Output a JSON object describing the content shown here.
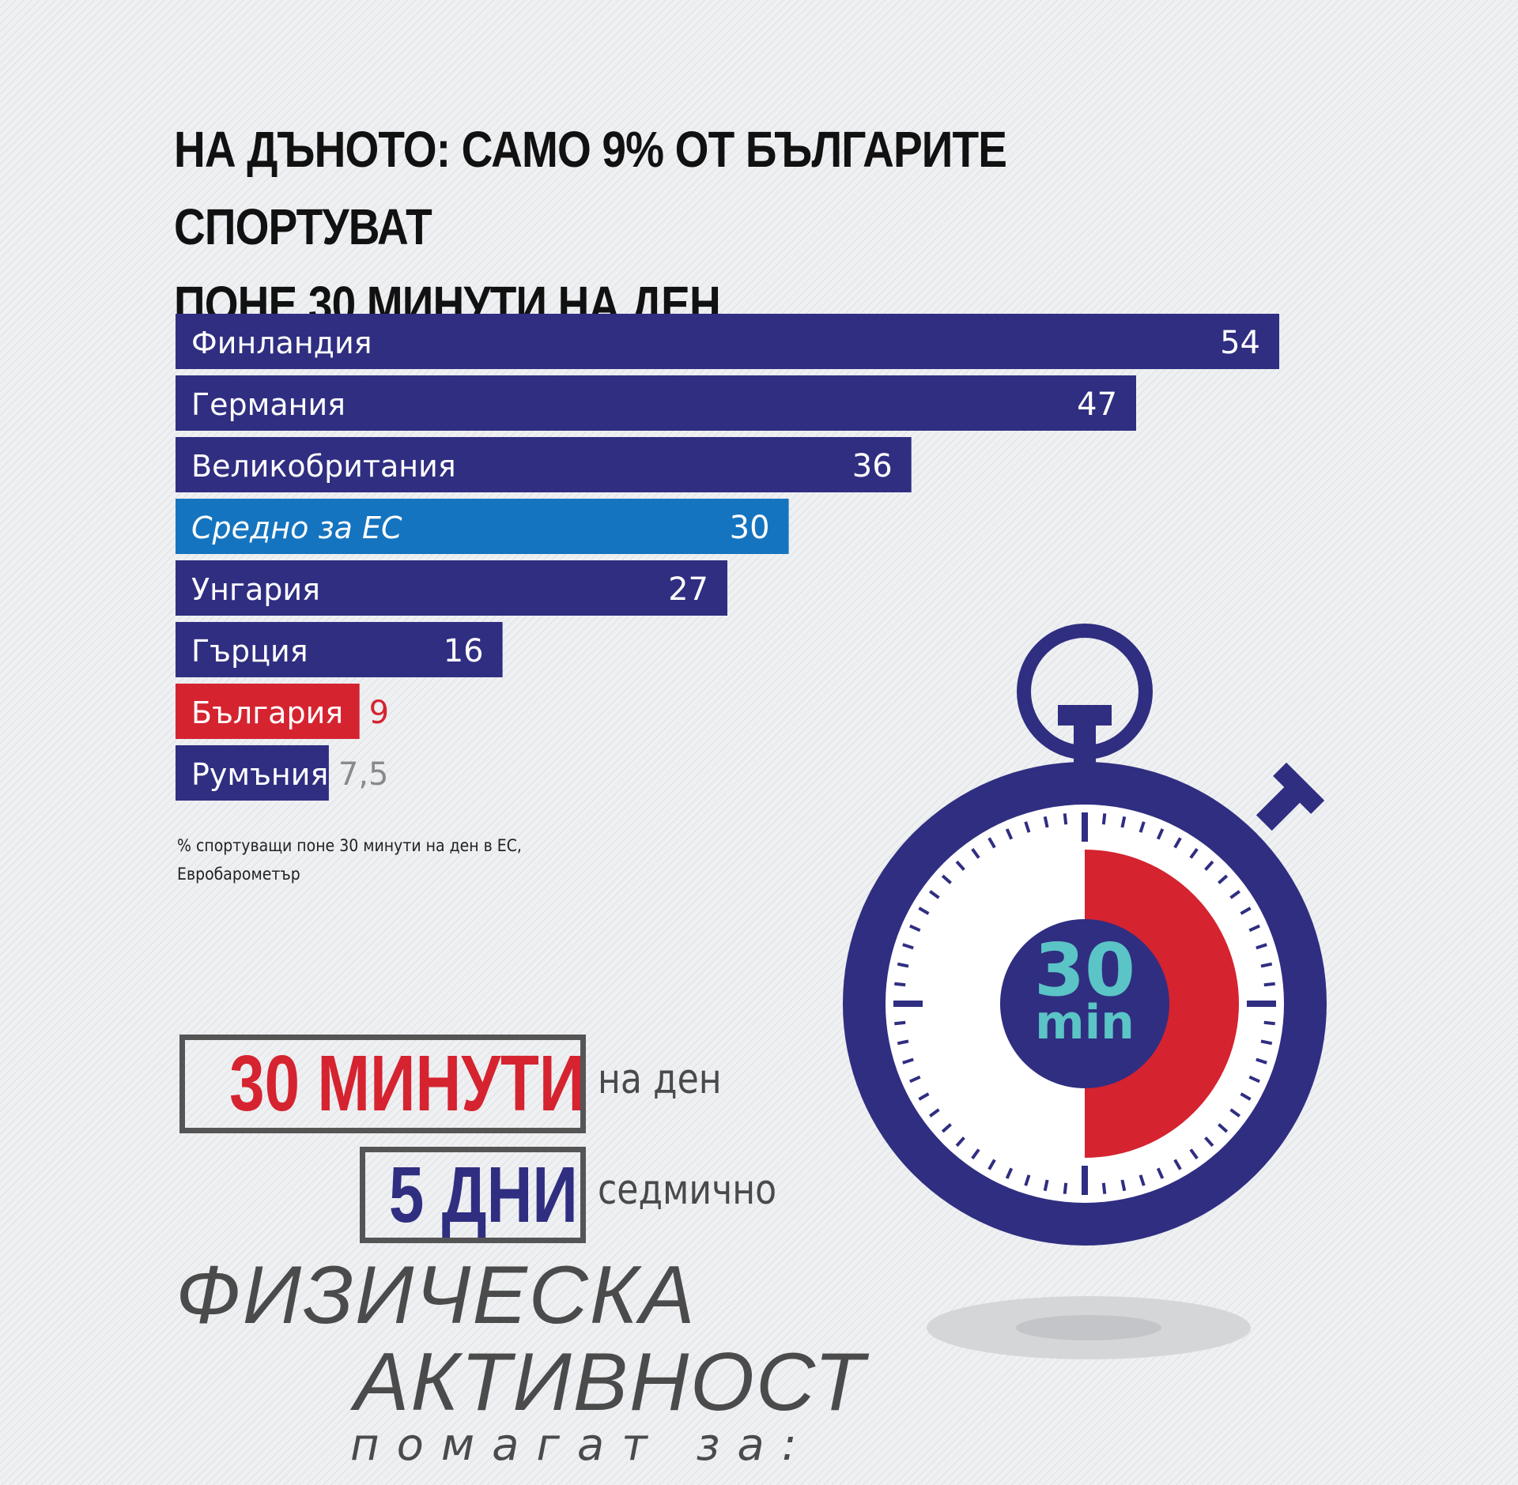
{
  "title_line1": "НА ДЪНОТО: САМО 9% ОТ БЪЛГАРИТЕ СПОРТУВАТ",
  "title_line2": "ПОНЕ 30 МИНУТИ НА ДЕН",
  "chart_data": {
    "type": "bar",
    "orientation": "horizontal",
    "categories": [
      "Финландия",
      "Германия",
      "Великобритания",
      "Средно за ЕС",
      "Унгария",
      "Гърция",
      "България",
      "Румъния"
    ],
    "values": [
      54,
      47,
      36,
      30,
      27,
      16,
      9,
      7.5
    ],
    "value_labels": [
      "54",
      "47",
      "36",
      "30",
      "27",
      "16",
      "9",
      "7,5"
    ],
    "bar_colors": [
      "#302e81",
      "#302e81",
      "#302e81",
      "#1574bf",
      "#302e81",
      "#302e81",
      "#d52330",
      "#302e81"
    ],
    "label_styles": [
      "normal",
      "normal",
      "normal",
      "italic",
      "normal",
      "normal",
      "normal",
      "normal"
    ],
    "value_label_colors_outside": [
      "#ffffff",
      "#ffffff",
      "#ffffff",
      "#ffffff",
      "#ffffff",
      "#ffffff",
      "#d52330",
      "#8a8a8a"
    ],
    "xlim": [
      0,
      54
    ],
    "grid": false,
    "legend": "none"
  },
  "source_line1": "% спортуващи поне 30 минути на ден в ЕС,",
  "source_line2": "Евробарометър",
  "box1_text": "30 МИНУТИ",
  "box1_suffix": "на ден",
  "box2_text": "5 ДНИ",
  "box2_suffix": "седмично",
  "big_line1": "ФИЗИЧЕСКА",
  "big_line2": "АКТИВНОСТ",
  "help_text": "помагат за:",
  "stopwatch": {
    "number": "30",
    "unit": "min",
    "filled_fraction": 0.5
  },
  "colors": {
    "navy": "#302e81",
    "red": "#d52330",
    "blue": "#1574bf",
    "teal": "#5bc4c6",
    "gray": "#8a8a8a"
  }
}
